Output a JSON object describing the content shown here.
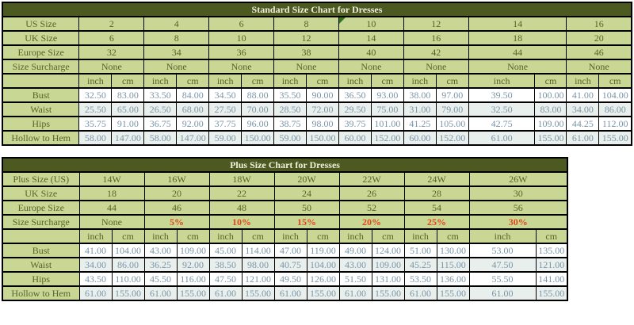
{
  "colors": {
    "title_bar_bg": "#4c5920",
    "title_bar_text": "#f2efdc",
    "green_cell_bg": "#c9d795",
    "green_cell_text": "#556328",
    "measure_value_text": "#7b95a7",
    "measure_row_tint": "#e9efec",
    "surcharge_red": "#e0451a",
    "grid_border": "#000000",
    "comment_triangle_green": "#337321"
  },
  "tables": [
    {
      "title": "Standard Size Chart for Dresses",
      "columns": [
        "2",
        "4",
        "6",
        "8",
        "10",
        "12",
        "14",
        "16"
      ],
      "note_marker_cell": {
        "row": 0,
        "col": 4
      },
      "size_rows": [
        {
          "label": "US Size",
          "values": [
            "2",
            "4",
            "6",
            "8",
            "10",
            "12",
            "14",
            "16"
          ]
        },
        {
          "label": "UK Size",
          "values": [
            "6",
            "8",
            "10",
            "12",
            "14",
            "16",
            "18",
            "20"
          ]
        },
        {
          "label": "Europe Size",
          "values": [
            "32",
            "34",
            "36",
            "38",
            "40",
            "42",
            "44",
            "46"
          ]
        },
        {
          "label": "Size Surcharge",
          "values": [
            "None",
            "None",
            "None",
            "None",
            "None",
            "None",
            "None",
            "None"
          ]
        }
      ],
      "units": [
        "inch",
        "cm"
      ],
      "measure_rows": [
        {
          "label": "Bust",
          "pairs": [
            [
              "32.50",
              "83.00"
            ],
            [
              "33.50",
              "84.00"
            ],
            [
              "34.50",
              "88.00"
            ],
            [
              "35.50",
              "90.00"
            ],
            [
              "36.50",
              "93.00"
            ],
            [
              "38.00",
              "97.00"
            ],
            [
              "39.50",
              "100.00"
            ],
            [
              "41.00",
              "104.00"
            ]
          ]
        },
        {
          "label": "Waist",
          "pairs": [
            [
              "25.50",
              "65.00"
            ],
            [
              "26.50",
              "68.00"
            ],
            [
              "27.50",
              "70.00"
            ],
            [
              "28.50",
              "72.00"
            ],
            [
              "29.50",
              "75.00"
            ],
            [
              "31.00",
              "79.00"
            ],
            [
              "32.50",
              "83.00"
            ],
            [
              "34.00",
              "86.00"
            ]
          ]
        },
        {
          "label": "Hips",
          "pairs": [
            [
              "35.75",
              "91.00"
            ],
            [
              "36.75",
              "92.00"
            ],
            [
              "37.75",
              "96.00"
            ],
            [
              "38.75",
              "98.00"
            ],
            [
              "39.75",
              "101.00"
            ],
            [
              "41.25",
              "105.00"
            ],
            [
              "42.75",
              "109.00"
            ],
            [
              "44.25",
              "112.00"
            ]
          ]
        },
        {
          "label": "Hollow to Hem",
          "pairs": [
            [
              "58.00",
              "147.00"
            ],
            [
              "58.00",
              "147.00"
            ],
            [
              "59.00",
              "150.00"
            ],
            [
              "59.00",
              "150.00"
            ],
            [
              "60.00",
              "152.00"
            ],
            [
              "60.00",
              "152.00"
            ],
            [
              "61.00",
              "155.00"
            ],
            [
              "61.00",
              "155.00"
            ]
          ]
        }
      ]
    },
    {
      "title": "Plus Size Chart for Dresses",
      "columns": [
        "14W",
        "16W",
        "18W",
        "20W",
        "22W",
        "24W",
        "26W"
      ],
      "size_rows": [
        {
          "label": "Plus Size (US)",
          "values": [
            "14W",
            "16W",
            "18W",
            "20W",
            "22W",
            "24W",
            "26W"
          ]
        },
        {
          "label": "UK Size",
          "values": [
            "18",
            "20",
            "22",
            "24",
            "26",
            "28",
            "30"
          ]
        },
        {
          "label": "Europe Size",
          "values": [
            "44",
            "46",
            "48",
            "50",
            "52",
            "54",
            "56"
          ]
        },
        {
          "label": "Size Surcharge",
          "values": [
            "None",
            "5%",
            "10%",
            "15%",
            "20%",
            "25%",
            "30%"
          ]
        }
      ],
      "units": [
        "inch",
        "cm"
      ],
      "measure_rows": [
        {
          "label": "Bust",
          "pairs": [
            [
              "41.00",
              "104.00"
            ],
            [
              "43.00",
              "109.00"
            ],
            [
              "45.00",
              "114.00"
            ],
            [
              "47.00",
              "119.00"
            ],
            [
              "49.00",
              "124.00"
            ],
            [
              "51.00",
              "130.00"
            ],
            [
              "53.00",
              "135.00"
            ]
          ]
        },
        {
          "label": "Waist",
          "pairs": [
            [
              "34.00",
              "86.00"
            ],
            [
              "36.25",
              "92.00"
            ],
            [
              "38.50",
              "98.00"
            ],
            [
              "40.75",
              "104.00"
            ],
            [
              "43.00",
              "109.00"
            ],
            [
              "45.25",
              "115.00"
            ],
            [
              "47.50",
              "121.00"
            ]
          ]
        },
        {
          "label": "Hips",
          "pairs": [
            [
              "43.50",
              "110.00"
            ],
            [
              "45.50",
              "116.00"
            ],
            [
              "47.50",
              "121.00"
            ],
            [
              "49.50",
              "126.00"
            ],
            [
              "51.50",
              "131.00"
            ],
            [
              "53.50",
              "136.00"
            ],
            [
              "55.50",
              "141.00"
            ]
          ]
        },
        {
          "label": "Hollow to Hem",
          "pairs": [
            [
              "61.00",
              "155.00"
            ],
            [
              "61.00",
              "155.00"
            ],
            [
              "61.00",
              "155.00"
            ],
            [
              "61.00",
              "155.00"
            ],
            [
              "61.00",
              "155.00"
            ],
            [
              "61.00",
              "155.00"
            ],
            [
              "61.00",
              "155.00"
            ]
          ]
        }
      ]
    }
  ]
}
